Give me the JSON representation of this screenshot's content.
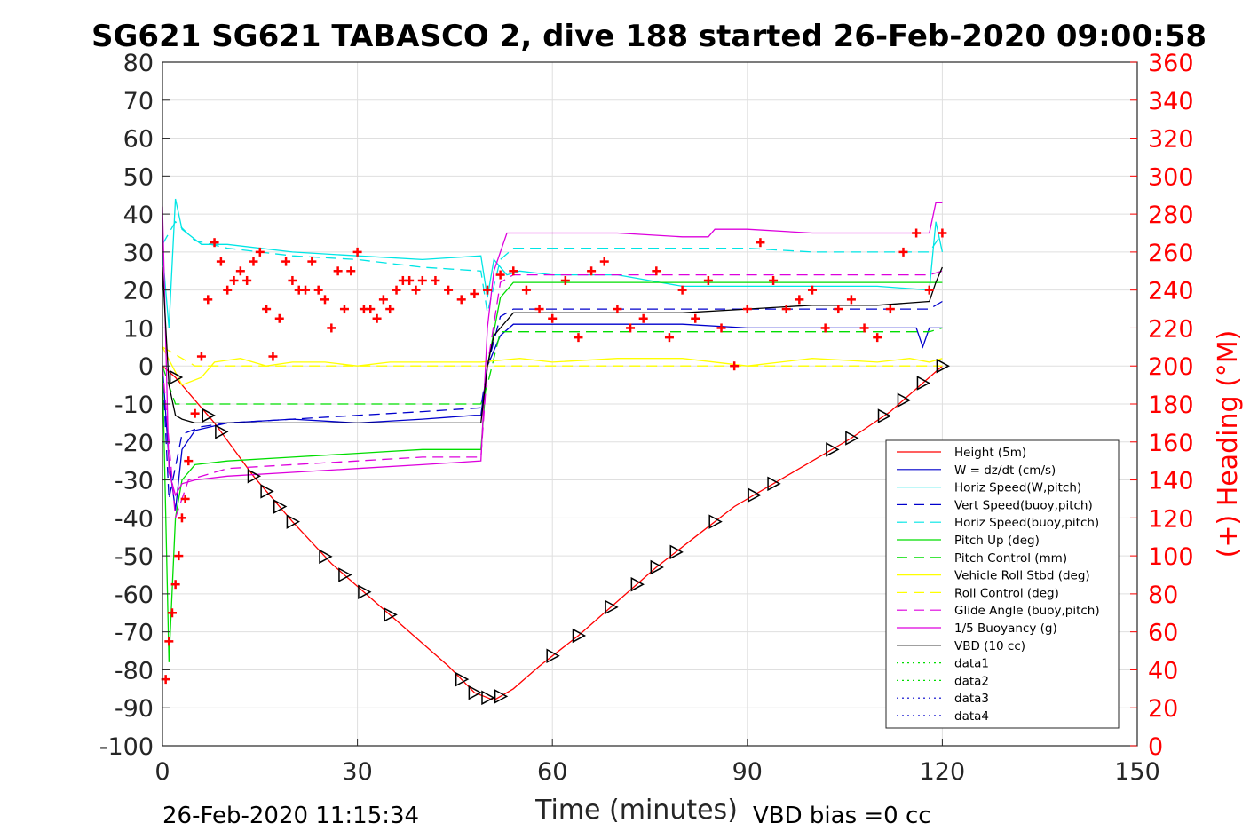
{
  "chart_data": {
    "type": "line",
    "title": "SG621 SG621 TABASCO 2, dive 188 started 26-Feb-2020 09:00:58",
    "xlabel": "Time (minutes)",
    "ylabel": "",
    "ylabel_right": "(+) Heading (°M)",
    "xlim": [
      0,
      150
    ],
    "ylim": [
      -100,
      80
    ],
    "ylim_right": [
      0,
      360
    ],
    "x_ticks": [
      "0",
      "30",
      "60",
      "90",
      "120",
      "150"
    ],
    "y_ticks": [
      "80",
      "70",
      "60",
      "50",
      "40",
      "30",
      "20",
      "10",
      "0",
      "-10",
      "-20",
      "-30",
      "-40",
      "-50",
      "-60",
      "-70",
      "-80",
      "-90",
      "-100"
    ],
    "y_ticks_right": [
      "360",
      "340",
      "320",
      "300",
      "280",
      "260",
      "240",
      "220",
      "200",
      "180",
      "160",
      "140",
      "120",
      "100",
      "80",
      "60",
      "40",
      "20",
      "0"
    ],
    "grid": true,
    "legend_position": "bottom-right",
    "footer_left": "26-Feb-2020 11:15:34",
    "footer_right": "VBD bias =0 cc",
    "series": [
      {
        "name": "Height (5m)",
        "color": "#ff0000",
        "style": "solid",
        "x": [
          0,
          2,
          8,
          14,
          20,
          26,
          32,
          38,
          44,
          48,
          51,
          52,
          54,
          58,
          64,
          70,
          76,
          82,
          88,
          94,
          100,
          106,
          112,
          116,
          120
        ],
        "y": [
          0,
          -3,
          -15,
          -29,
          -41,
          -52,
          -61,
          -70,
          -79,
          -86,
          -88,
          -87,
          -85,
          -79,
          -71,
          -62,
          -53,
          -45,
          -37,
          -31,
          -25,
          -19,
          -12,
          -6,
          0
        ]
      },
      {
        "name": "W = dz/dt (cm/s)",
        "color": "#0000cc",
        "style": "solid",
        "x": [
          0,
          1,
          2,
          3,
          5,
          10,
          20,
          30,
          40,
          48,
          49,
          50,
          52,
          54,
          60,
          70,
          80,
          90,
          100,
          110,
          116,
          117,
          118,
          120
        ],
        "y": [
          0,
          -25,
          -38,
          -22,
          -17,
          -15,
          -14,
          -15,
          -14,
          -13,
          -13,
          0,
          8,
          11,
          11,
          11,
          11,
          10,
          10,
          10,
          10,
          5,
          10,
          10
        ]
      },
      {
        "name": "Horiz Speed(W,pitch)",
        "color": "#00e5e5",
        "style": "solid",
        "x": [
          0,
          1,
          2,
          3,
          6,
          10,
          20,
          30,
          40,
          49,
          50,
          51,
          53,
          55,
          60,
          70,
          80,
          90,
          100,
          110,
          118,
          119,
          120
        ],
        "y": [
          30,
          10,
          44,
          36,
          32,
          32,
          30,
          29,
          28,
          29,
          18,
          28,
          24,
          25,
          24,
          24,
          21,
          21,
          21,
          21,
          20,
          38,
          30
        ]
      },
      {
        "name": "Vert Speed(buoy,pitch)",
        "color": "#0000cc",
        "style": "dashed",
        "x": [
          0,
          1,
          3,
          6,
          10,
          20,
          30,
          40,
          49,
          50,
          52,
          54,
          60,
          70,
          80,
          90,
          100,
          110,
          118,
          120
        ],
        "y": [
          0,
          -35,
          -18,
          -16,
          -15,
          -14,
          -13,
          -12,
          -11,
          0,
          13,
          15,
          15,
          15,
          15,
          15,
          15,
          15,
          15,
          17
        ]
      },
      {
        "name": "Horiz Speed(buoy,pitch)",
        "color": "#00e5e5",
        "style": "dashed",
        "x": [
          0,
          2,
          5,
          10,
          20,
          30,
          40,
          49,
          50,
          52,
          54,
          60,
          70,
          80,
          90,
          100,
          110,
          118,
          120
        ],
        "y": [
          32,
          38,
          33,
          31,
          29,
          28,
          26,
          25,
          14,
          28,
          31,
          31,
          31,
          31,
          31,
          30,
          30,
          30,
          35
        ]
      },
      {
        "name": "Pitch Up (deg)",
        "color": "#00dd00",
        "style": "solid",
        "x": [
          0,
          1,
          2,
          3,
          5,
          10,
          20,
          30,
          40,
          48,
          49,
          50,
          52,
          54,
          60,
          70,
          80,
          90,
          100,
          110,
          118,
          120
        ],
        "y": [
          0,
          -78,
          -40,
          -30,
          -26,
          -25,
          -24,
          -23,
          -22,
          -22,
          -22,
          0,
          18,
          22,
          22,
          22,
          22,
          22,
          22,
          22,
          22,
          22
        ]
      },
      {
        "name": "Pitch Control (mm)",
        "color": "#00dd00",
        "style": "dashed",
        "x": [
          0,
          2,
          3,
          10,
          20,
          30,
          40,
          49,
          50,
          52,
          54,
          60,
          70,
          80,
          90,
          100,
          110,
          118,
          120
        ],
        "y": [
          0,
          -10,
          -10,
          -10,
          -10,
          -10,
          -10,
          -10,
          -5,
          9,
          9,
          9,
          9,
          9,
          9,
          9,
          9,
          9,
          10
        ]
      },
      {
        "name": "Vehicle Roll Stbd (deg)",
        "color": "#ffff00",
        "style": "solid",
        "x": [
          0,
          3,
          6,
          8,
          12,
          16,
          20,
          25,
          30,
          35,
          40,
          45,
          49,
          55,
          60,
          70,
          80,
          90,
          100,
          110,
          115,
          118,
          120
        ],
        "y": [
          5,
          -5,
          -3,
          1,
          2,
          0,
          1,
          1,
          0,
          1,
          1,
          1,
          1,
          2,
          1,
          2,
          2,
          0,
          2,
          1,
          2,
          1,
          2
        ]
      },
      {
        "name": "Roll Control (deg)",
        "color": "#ffff00",
        "style": "dashed",
        "x": [
          0,
          5,
          10,
          20,
          30,
          40,
          49,
          55,
          60,
          70,
          80,
          90,
          100,
          110,
          118,
          120
        ],
        "y": [
          5,
          0,
          0,
          0,
          0,
          0,
          0,
          0,
          0,
          0,
          0,
          0,
          0,
          0,
          0,
          0
        ]
      },
      {
        "name": "Glide Angle (buoy,pitch)",
        "color": "#dd00dd",
        "style": "dashed",
        "x": [
          0,
          2,
          4,
          10,
          20,
          30,
          40,
          49,
          50,
          52,
          54,
          60,
          70,
          80,
          90,
          100,
          110,
          118,
          120
        ],
        "y": [
          0,
          -40,
          -30,
          -27,
          -26,
          -25,
          -24,
          -24,
          0,
          22,
          24,
          24,
          24,
          24,
          24,
          24,
          24,
          24,
          25
        ]
      },
      {
        "name": "1/5 Buoyancy (g)",
        "color": "#dd00dd",
        "style": "solid",
        "x": [
          0,
          1,
          2,
          3,
          5,
          10,
          20,
          30,
          40,
          49,
          50,
          51,
          53,
          60,
          70,
          80,
          84,
          85,
          90,
          100,
          110,
          118,
          119,
          120
        ],
        "y": [
          42,
          -28,
          -34,
          -31,
          -30,
          -29,
          -28,
          -27,
          -26,
          -25,
          10,
          25,
          35,
          35,
          35,
          34,
          34,
          36,
          36,
          35,
          35,
          35,
          43,
          43
        ]
      },
      {
        "name": "VBD (10 cc)",
        "color": "#000000",
        "style": "solid",
        "x": [
          0,
          1,
          2,
          3,
          5,
          10,
          20,
          30,
          40,
          49,
          50,
          51,
          54,
          60,
          70,
          80,
          90,
          100,
          110,
          118,
          119,
          120
        ],
        "y": [
          26,
          -5,
          -13,
          -14,
          -15,
          -15,
          -15,
          -15,
          -15,
          -15,
          0,
          8,
          14,
          14,
          14,
          14,
          15,
          16,
          16,
          17,
          22,
          26
        ]
      },
      {
        "name": "data1",
        "color": "#00dd00",
        "style": "dotted",
        "x": [],
        "y": []
      },
      {
        "name": "data2",
        "color": "#00dd00",
        "style": "dotted",
        "x": [],
        "y": []
      },
      {
        "name": "data3",
        "color": "#0000cc",
        "style": "dotted",
        "x": [],
        "y": []
      },
      {
        "name": "data4",
        "color": "#0000cc",
        "style": "dotted",
        "x": [],
        "y": []
      }
    ],
    "heading": {
      "name": "(+) Heading",
      "color": "#ff0000",
      "x": [
        0.5,
        1,
        1.5,
        2,
        2.5,
        3,
        3.5,
        4,
        5,
        6,
        7,
        8,
        9,
        10,
        11,
        12,
        13,
        14,
        15,
        16,
        17,
        18,
        19,
        20,
        21,
        22,
        23,
        24,
        25,
        26,
        27,
        28,
        29,
        30,
        31,
        32,
        33,
        34,
        35,
        36,
        37,
        38,
        39,
        40,
        42,
        44,
        46,
        48,
        50,
        52,
        54,
        56,
        58,
        60,
        62,
        64,
        66,
        68,
        70,
        72,
        74,
        76,
        78,
        80,
        82,
        84,
        86,
        88,
        90,
        92,
        94,
        96,
        98,
        100,
        102,
        104,
        106,
        108,
        110,
        112,
        114,
        116,
        118,
        120
      ],
      "y": [
        35,
        55,
        70,
        85,
        100,
        120,
        130,
        150,
        175,
        205,
        235,
        265,
        255,
        240,
        245,
        250,
        245,
        255,
        260,
        230,
        205,
        225,
        255,
        245,
        240,
        240,
        255,
        240,
        235,
        220,
        250,
        230,
        250,
        260,
        230,
        230,
        225,
        235,
        230,
        240,
        245,
        245,
        240,
        245,
        245,
        240,
        235,
        238,
        240,
        248,
        250,
        240,
        230,
        225,
        245,
        215,
        250,
        255,
        230,
        220,
        225,
        250,
        215,
        240,
        225,
        245,
        220,
        200,
        230,
        265,
        245,
        230,
        235,
        240,
        220,
        230,
        235,
        220,
        215,
        230,
        260,
        270,
        240,
        270
      ]
    },
    "markers_x": [
      2,
      7,
      9,
      14,
      16,
      18,
      20,
      25,
      28,
      31,
      35,
      46,
      48,
      50,
      52,
      60,
      64,
      69,
      73,
      76,
      79,
      85,
      91,
      94,
      103,
      106,
      111,
      114,
      117,
      120
    ]
  }
}
